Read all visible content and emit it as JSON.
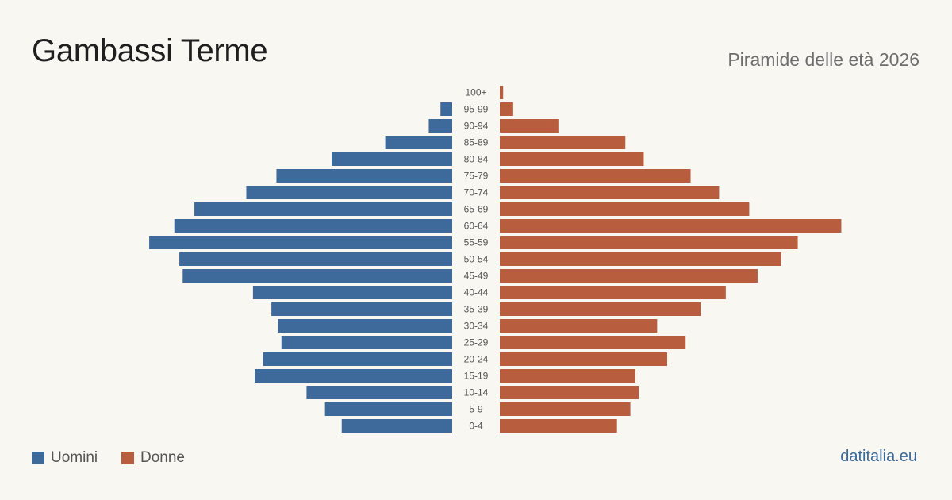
{
  "header": {
    "title": "Gambassi Terme",
    "subtitle": "Piramide delle età 2026"
  },
  "legend": {
    "men_label": "Uomini",
    "women_label": "Donne"
  },
  "source": "datitalia.eu",
  "colors": {
    "men": "#3d6a9a",
    "women": "#b85d3d",
    "background": "#f9f7f2"
  },
  "chart_data": {
    "type": "bar",
    "orientation": "horizontal-pyramid",
    "categories": [
      "100+",
      "95-99",
      "90-94",
      "85-89",
      "80-84",
      "75-79",
      "70-74",
      "65-69",
      "60-64",
      "55-59",
      "50-54",
      "45-49",
      "40-44",
      "35-39",
      "30-34",
      "25-29",
      "20-24",
      "15-19",
      "10-14",
      "5-9",
      "0-4"
    ],
    "series": [
      {
        "name": "Uomini",
        "values": [
          0,
          7,
          14,
          40,
          72,
          105,
          123,
          154,
          166,
          181,
          163,
          161,
          119,
          108,
          104,
          102,
          113,
          118,
          87,
          76,
          66
        ]
      },
      {
        "name": "Donne",
        "values": [
          2,
          8,
          35,
          75,
          86,
          114,
          131,
          149,
          204,
          178,
          168,
          154,
          135,
          120,
          94,
          111,
          100,
          81,
          83,
          78,
          70
        ]
      }
    ],
    "grid": false,
    "legend_position": "bottom-left"
  }
}
